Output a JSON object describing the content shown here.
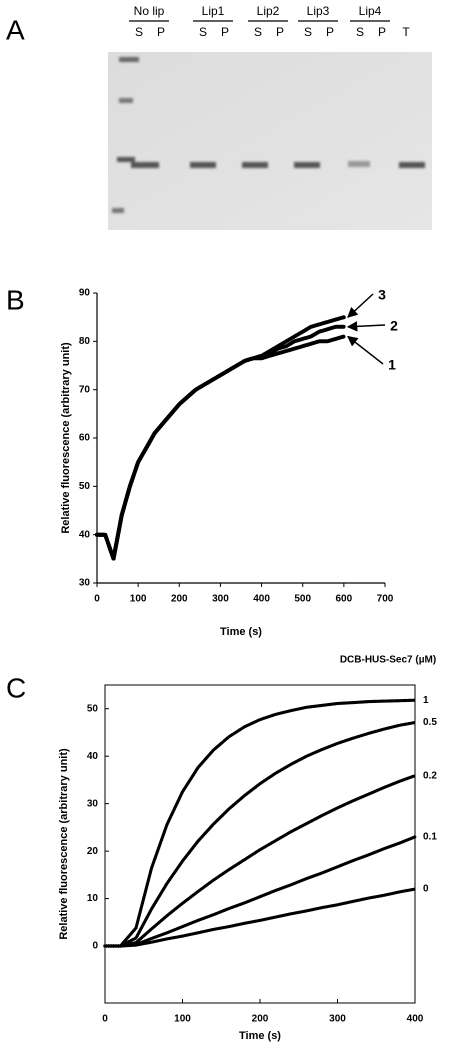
{
  "gel": {
    "panel_label": "A",
    "groups": [
      {
        "name": "No lip",
        "fractions": [
          "S",
          "P"
        ]
      },
      {
        "name": "Lip1",
        "fractions": [
          "S",
          "P"
        ]
      },
      {
        "name": "Lip2",
        "fractions": [
          "S",
          "P"
        ]
      },
      {
        "name": "Lip3",
        "fractions": [
          "S",
          "P"
        ]
      },
      {
        "name": "Lip4",
        "fractions": [
          "S",
          "P"
        ]
      }
    ],
    "total": "T"
  },
  "chart_data": [
    {
      "type": "scatter",
      "panel_label": "B",
      "x_label": "Time (s)",
      "y_label": "Relative fluorescence (arbitrary unit)",
      "xlim": [
        0,
        700
      ],
      "xticks": [
        0,
        100,
        200,
        300,
        400,
        500,
        600,
        700
      ],
      "ylim": [
        30,
        90
      ],
      "yticks": [
        30,
        40,
        50,
        60,
        70,
        80,
        90
      ],
      "x": [
        0,
        20,
        40,
        60,
        80,
        100,
        120,
        140,
        160,
        180,
        200,
        220,
        240,
        260,
        280,
        300,
        320,
        340,
        360,
        380,
        400,
        420,
        440,
        460,
        480,
        500,
        520,
        540,
        560,
        580,
        600
      ],
      "series": [
        {
          "name": "1",
          "color": "#000000",
          "values": [
            40,
            40,
            35,
            44,
            50,
            55,
            58,
            61,
            63,
            65,
            67,
            68.5,
            70,
            71,
            72,
            73,
            74,
            75,
            76,
            76.5,
            76.5,
            77,
            77.5,
            78,
            78.5,
            79,
            79.5,
            80,
            80,
            80.5,
            81
          ]
        },
        {
          "name": "2",
          "color": "#000000",
          "values": [
            40,
            40,
            35,
            44,
            50,
            55,
            58,
            61,
            63,
            65,
            67,
            68.5,
            70,
            71,
            72,
            73,
            74,
            75,
            76,
            76.5,
            77,
            77.5,
            78.5,
            79,
            80,
            80.5,
            81,
            82,
            82.5,
            83,
            83
          ]
        },
        {
          "name": "3",
          "color": "#000000",
          "values": [
            40,
            40,
            35,
            44,
            50,
            55,
            58,
            61,
            63,
            65,
            67,
            68.5,
            70,
            71,
            72,
            73,
            74,
            75,
            76,
            76.5,
            77,
            78,
            79,
            80,
            81,
            82,
            83,
            83.5,
            84,
            84.5,
            85
          ]
        }
      ]
    },
    {
      "type": "scatter",
      "panel_label": "C",
      "legend_title": "DCB-HUS-Sec7 (µM)",
      "x_label": "Time (s)",
      "y_label": "Relative fluorescence (arbitrary unit)",
      "xlim": [
        0,
        400
      ],
      "xticks": [
        0,
        100,
        200,
        300,
        400
      ],
      "ylim": [
        -12,
        55
      ],
      "yticks": [
        0,
        10,
        20,
        30,
        40,
        50
      ],
      "x": [
        0,
        20,
        40,
        60,
        80,
        100,
        120,
        140,
        160,
        180,
        200,
        220,
        240,
        260,
        280,
        300,
        320,
        340,
        360,
        380,
        400
      ],
      "series": [
        {
          "name": "1",
          "color": "#000000",
          "values": [
            0,
            0,
            3.8,
            16.4,
            25.6,
            32.5,
            37.6,
            41.3,
            44.1,
            46.2,
            47.7,
            48.8,
            49.6,
            50.3,
            50.7,
            51.1,
            51.3,
            51.5,
            51.6,
            51.7,
            51.8
          ]
        },
        {
          "name": "0.5",
          "color": "#000000",
          "values": [
            0,
            0,
            1.7,
            7.8,
            13.2,
            17.9,
            22.1,
            25.7,
            28.9,
            31.7,
            34.2,
            36.4,
            38.3,
            40.0,
            41.4,
            42.7,
            43.8,
            44.8,
            45.7,
            46.5,
            47.1
          ]
        },
        {
          "name": "0.2",
          "color": "#000000",
          "values": [
            0,
            0,
            0.7,
            3.6,
            6.4,
            9.0,
            11.5,
            13.9,
            16.1,
            18.2,
            20.3,
            22.2,
            24.1,
            25.8,
            27.5,
            29.1,
            30.6,
            32.0,
            33.4,
            34.7,
            35.9
          ]
        },
        {
          "name": "0.1",
          "color": "#000000",
          "values": [
            0,
            0,
            0.3,
            1.6,
            2.8,
            4.1,
            5.4,
            6.6,
            7.9,
            9.1,
            10.4,
            11.7,
            12.9,
            14.2,
            15.4,
            16.7,
            18.0,
            19.2,
            20.5,
            21.7,
            23.0
          ]
        },
        {
          "name": "0",
          "color": "#000000",
          "values": [
            0,
            0,
            0.2,
            0.8,
            1.5,
            2.1,
            2.8,
            3.5,
            4.1,
            4.8,
            5.4,
            6.1,
            6.8,
            7.4,
            8.1,
            8.7,
            9.4,
            10.1,
            10.7,
            11.4,
            12.0
          ]
        }
      ]
    }
  ]
}
